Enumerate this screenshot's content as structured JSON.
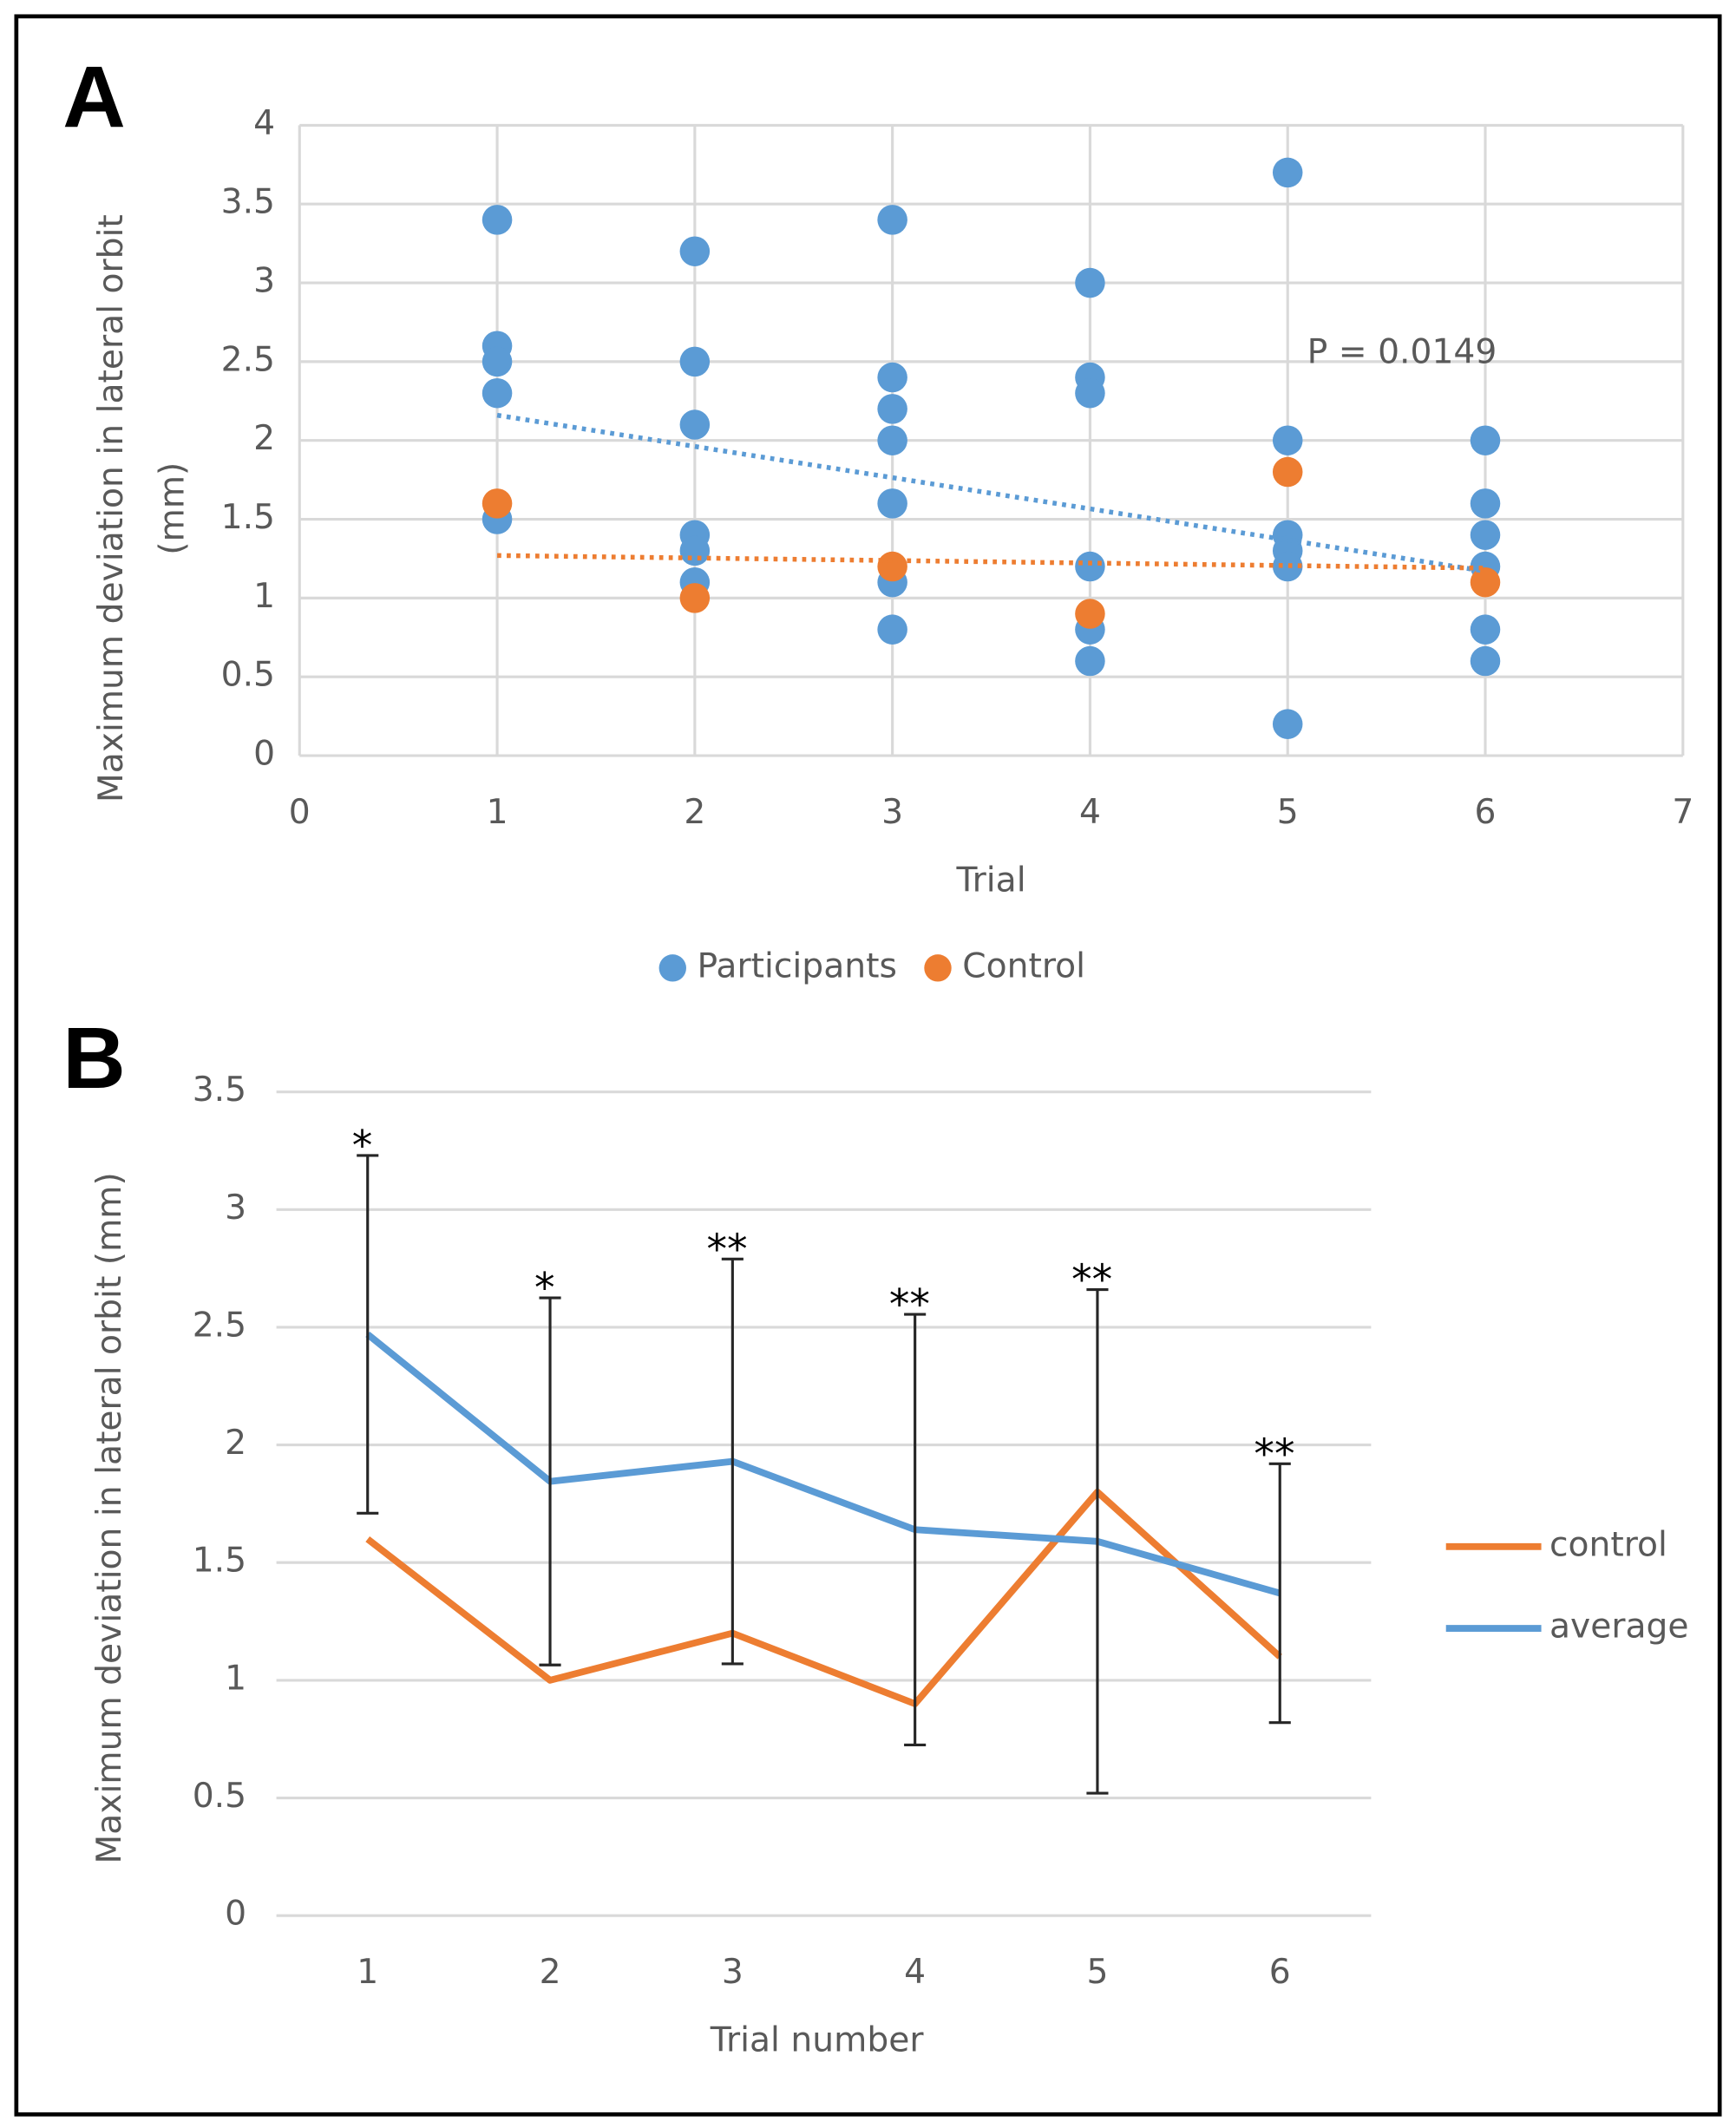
{
  "chart_data": [
    {
      "type": "scatter",
      "panel": "A",
      "x_label": "Trial",
      "y_label": [
        "Maximum deviation in lateral orbit",
        "(mm)"
      ],
      "xlim": [
        0,
        7
      ],
      "xticks": [
        0,
        1,
        2,
        3,
        4,
        5,
        6,
        7
      ],
      "ylim": [
        0,
        4
      ],
      "yticks": [
        0,
        0.5,
        1,
        1.5,
        2,
        2.5,
        3,
        3.5,
        4
      ],
      "grid": "both",
      "legend_position": "bottom",
      "annotation": "P = 0.0149",
      "series": [
        {
          "name": "Participants",
          "color": "#5b9bd5",
          "x": [
            1,
            1,
            1,
            1,
            1,
            2,
            2,
            2,
            2,
            2,
            2,
            3,
            3,
            3,
            3,
            3,
            3,
            3,
            4,
            4,
            4,
            4,
            4,
            4,
            5,
            5,
            5,
            5,
            5,
            5,
            6,
            6,
            6,
            6,
            6,
            6
          ],
          "values": [
            3.4,
            2.6,
            2.5,
            2.3,
            1.5,
            3.2,
            2.5,
            2.1,
            1.4,
            1.3,
            1.1,
            3.4,
            2.4,
            2.2,
            2.0,
            1.6,
            1.1,
            0.8,
            3.0,
            2.4,
            2.3,
            1.2,
            0.8,
            0.6,
            3.7,
            2.0,
            1.4,
            1.3,
            1.2,
            0.2,
            2.0,
            1.6,
            1.4,
            1.2,
            0.8,
            0.6
          ],
          "trendline": {
            "x": [
              1,
              6
            ],
            "values": [
              2.16,
              1.17
            ]
          }
        },
        {
          "name": "Control",
          "color": "#ed7d31",
          "x": [
            1,
            2,
            3,
            4,
            5,
            6
          ],
          "values": [
            1.6,
            1.0,
            1.2,
            0.9,
            1.8,
            1.1
          ],
          "trendline": {
            "x": [
              1,
              6
            ],
            "values": [
              1.27,
              1.19
            ]
          }
        }
      ]
    },
    {
      "type": "line",
      "panel": "B",
      "x_label": "Trial number",
      "y_label": "Maximum deviation in lateral orbit (mm)",
      "categories": [
        "1",
        "2",
        "3",
        "4",
        "5",
        "6"
      ],
      "ylim": [
        0,
        3.5
      ],
      "yticks": [
        0,
        0.5,
        1,
        1.5,
        2,
        2.5,
        3,
        3.5
      ],
      "grid": "y",
      "legend_position": "right",
      "series": [
        {
          "name": "control",
          "color": "#ed7d31",
          "values": [
            1.6,
            1.0,
            1.2,
            0.9,
            1.8,
            1.1
          ]
        },
        {
          "name": "average",
          "color": "#5b9bd5",
          "values": [
            2.47,
            1.845,
            1.93,
            1.64,
            1.59,
            1.37
          ],
          "errors": [
            0.76,
            0.78,
            0.86,
            0.915,
            1.07,
            0.55
          ]
        }
      ],
      "annotations": [
        "*",
        "*",
        "**",
        "**",
        "**",
        "**"
      ]
    }
  ]
}
